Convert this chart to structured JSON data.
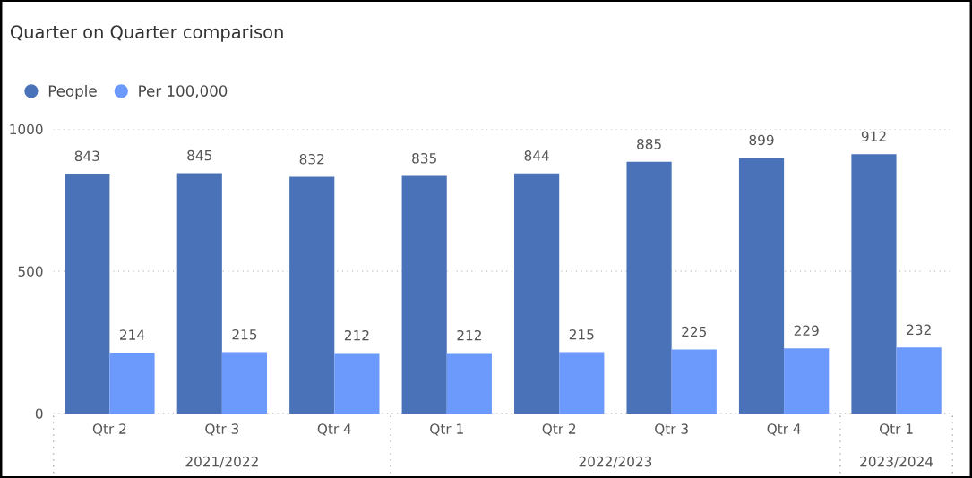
{
  "chart_data": {
    "type": "bar",
    "title": "Quarter on Quarter comparison",
    "categories": [
      "Qtr 2",
      "Qtr 3",
      "Qtr 4",
      "Qtr 1",
      "Qtr 2",
      "Qtr 3",
      "Qtr 4",
      "Qtr 1"
    ],
    "series": [
      {
        "name": "People",
        "color": "#4a72b8",
        "values": [
          843,
          845,
          832,
          835,
          844,
          885,
          899,
          912
        ]
      },
      {
        "name": "Per 100,000",
        "color": "#6b99fc",
        "values": [
          214,
          215,
          212,
          212,
          215,
          225,
          229,
          232
        ]
      }
    ],
    "annotations": [
      "2021/2022",
      "2022/2023",
      "2023/2024"
    ],
    "ylim": [
      0,
      1000
    ],
    "yticks": [
      0,
      500,
      1000
    ],
    "grid": "y",
    "legend": "top left",
    "data_labels": true
  }
}
